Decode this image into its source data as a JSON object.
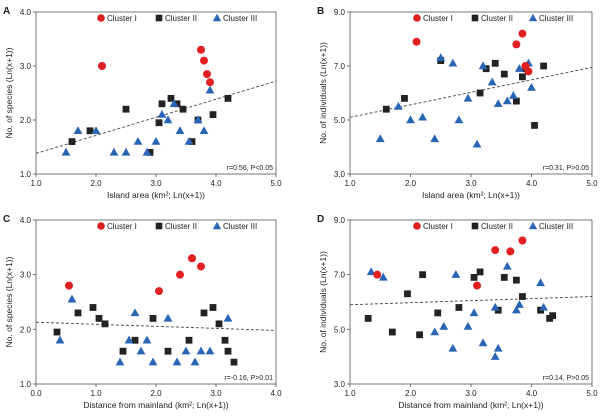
{
  "colors": {
    "cluster1": "#e02020",
    "cluster2": "#222222",
    "cluster3": "#2a64b4",
    "trend": "#444444"
  },
  "legend": [
    "Cluster I",
    "Cluster II",
    "Cluster III"
  ],
  "chart_data": [
    {
      "panel": "A",
      "type": "scatter",
      "xlabel": "Island area (km²; Ln(x+1))",
      "ylabel": "No. of species (Ln(x+1))",
      "xlim": [
        1.0,
        5.0
      ],
      "ylim": [
        1.0,
        4.0
      ],
      "xticks": [
        "1.0",
        "2.0",
        "3.0",
        "4.0",
        "5.0"
      ],
      "yticks": [
        "1.0",
        "2.0",
        "3.0",
        "4.0"
      ],
      "stat": "r=0.56, P<0.05",
      "trend": [
        [
          1.0,
          1.38
        ],
        [
          5.0,
          2.72
        ]
      ],
      "cluster1": [
        [
          2.1,
          3.0
        ],
        [
          3.75,
          3.3
        ],
        [
          3.8,
          3.1
        ],
        [
          3.85,
          2.85
        ],
        [
          3.9,
          2.7
        ]
      ],
      "cluster2": [
        [
          1.6,
          1.6
        ],
        [
          1.9,
          1.8
        ],
        [
          2.5,
          2.2
        ],
        [
          2.9,
          1.4
        ],
        [
          3.05,
          1.95
        ],
        [
          3.1,
          2.3
        ],
        [
          3.25,
          2.4
        ],
        [
          3.35,
          2.3
        ],
        [
          3.45,
          2.2
        ],
        [
          3.6,
          1.6
        ],
        [
          3.7,
          2.0
        ],
        [
          3.95,
          2.1
        ],
        [
          4.2,
          2.4
        ]
      ],
      "cluster3": [
        [
          1.5,
          1.4
        ],
        [
          1.7,
          1.8
        ],
        [
          2.0,
          1.8
        ],
        [
          2.3,
          1.4
        ],
        [
          2.5,
          1.4
        ],
        [
          2.7,
          1.6
        ],
        [
          2.85,
          1.4
        ],
        [
          3.0,
          1.6
        ],
        [
          3.1,
          2.1
        ],
        [
          3.2,
          2.0
        ],
        [
          3.3,
          2.3
        ],
        [
          3.4,
          1.8
        ],
        [
          3.55,
          1.6
        ],
        [
          3.7,
          2.0
        ],
        [
          3.8,
          1.8
        ],
        [
          3.9,
          2.55
        ]
      ]
    },
    {
      "panel": "B",
      "type": "scatter",
      "xlabel": "Island area (km²; Ln(x+1))",
      "ylabel": "No. of individuals (Ln(x+1))",
      "xlim": [
        1.0,
        5.0
      ],
      "ylim": [
        3.0,
        9.0
      ],
      "xticks": [
        "1.0",
        "2.0",
        "3.0",
        "4.0",
        "5.0"
      ],
      "yticks": [
        "3.0",
        "5.0",
        "7.0",
        "9.0"
      ],
      "stat": "r=0.31, P>0.05",
      "trend": [
        [
          1.0,
          5.1
        ],
        [
          5.0,
          6.95
        ]
      ],
      "cluster1": [
        [
          2.1,
          7.9
        ],
        [
          3.75,
          7.8
        ],
        [
          3.85,
          8.2
        ],
        [
          3.9,
          7.0
        ],
        [
          3.95,
          6.8
        ]
      ],
      "cluster2": [
        [
          1.6,
          5.4
        ],
        [
          1.9,
          5.8
        ],
        [
          2.5,
          7.2
        ],
        [
          3.15,
          6.0
        ],
        [
          3.25,
          6.9
        ],
        [
          3.4,
          7.1
        ],
        [
          3.55,
          6.7
        ],
        [
          3.75,
          5.7
        ],
        [
          3.85,
          6.6
        ],
        [
          3.9,
          6.9
        ],
        [
          4.05,
          4.8
        ],
        [
          4.2,
          7.0
        ]
      ],
      "cluster3": [
        [
          1.5,
          4.3
        ],
        [
          1.8,
          5.5
        ],
        [
          2.0,
          5.0
        ],
        [
          2.2,
          5.1
        ],
        [
          2.4,
          4.3
        ],
        [
          2.5,
          7.3
        ],
        [
          2.7,
          7.1
        ],
        [
          2.8,
          5.0
        ],
        [
          2.95,
          5.8
        ],
        [
          3.1,
          4.1
        ],
        [
          3.2,
          7.0
        ],
        [
          3.35,
          6.4
        ],
        [
          3.45,
          5.6
        ],
        [
          3.6,
          5.7
        ],
        [
          3.7,
          5.9
        ],
        [
          3.8,
          6.9
        ],
        [
          3.95,
          7.1
        ],
        [
          4.0,
          6.2
        ]
      ]
    },
    {
      "panel": "C",
      "type": "scatter",
      "xlabel": "Distance from mainland (km²; Ln(x+1))",
      "ylabel": "No. of species (Ln(x+1))",
      "xlim": [
        0.0,
        4.0
      ],
      "ylim": [
        1.0,
        4.0
      ],
      "xticks": [
        "0.0",
        "1.0",
        "2.0",
        "3.0",
        "4.0"
      ],
      "yticks": [
        "1.0",
        "2.0",
        "3.0",
        "4.0"
      ],
      "stat": "r=-0.16, P>0.01",
      "trend": [
        [
          0.0,
          2.13
        ],
        [
          4.0,
          1.98
        ]
      ],
      "cluster1": [
        [
          0.55,
          2.8
        ],
        [
          2.05,
          2.7
        ],
        [
          2.4,
          3.0
        ],
        [
          2.6,
          3.3
        ],
        [
          2.75,
          3.15
        ]
      ],
      "cluster2": [
        [
          0.35,
          1.95
        ],
        [
          0.7,
          2.3
        ],
        [
          0.95,
          2.4
        ],
        [
          1.05,
          2.2
        ],
        [
          1.15,
          2.1
        ],
        [
          1.45,
          1.6
        ],
        [
          1.65,
          1.8
        ],
        [
          1.95,
          2.2
        ],
        [
          2.2,
          1.6
        ],
        [
          2.55,
          1.8
        ],
        [
          2.8,
          2.3
        ],
        [
          2.95,
          2.4
        ],
        [
          3.05,
          2.1
        ],
        [
          3.15,
          1.8
        ],
        [
          3.2,
          1.6
        ],
        [
          3.3,
          1.4
        ]
      ],
      "cluster3": [
        [
          0.4,
          1.8
        ],
        [
          0.6,
          2.55
        ],
        [
          1.4,
          1.4
        ],
        [
          1.55,
          1.8
        ],
        [
          1.65,
          2.3
        ],
        [
          1.75,
          1.6
        ],
        [
          1.85,
          1.8
        ],
        [
          1.95,
          1.4
        ],
        [
          2.2,
          2.2
        ],
        [
          2.35,
          1.4
        ],
        [
          2.5,
          1.6
        ],
        [
          2.65,
          1.4
        ],
        [
          2.75,
          1.6
        ],
        [
          2.9,
          1.6
        ],
        [
          3.2,
          2.2
        ]
      ]
    },
    {
      "panel": "D",
      "type": "scatter",
      "xlabel": "Distance from mainland (km²; Ln(x+1))",
      "ylabel": "No. of individuals (Ln(x+1))",
      "xlim": [
        1.0,
        5.0
      ],
      "ylim": [
        3.0,
        9.0
      ],
      "xticks": [
        "1.0",
        "2.0",
        "3.0",
        "4.0",
        "5.0"
      ],
      "yticks": [
        "3.0",
        "5.0",
        "7.0",
        "9.0"
      ],
      "stat": "r=0.14, P>0.05",
      "trend": [
        [
          1.0,
          5.9
        ],
        [
          5.0,
          6.2
        ]
      ],
      "cluster1": [
        [
          1.45,
          7.0
        ],
        [
          3.1,
          6.6
        ],
        [
          3.4,
          7.9
        ],
        [
          3.65,
          7.85
        ],
        [
          3.85,
          8.25
        ]
      ],
      "cluster2": [
        [
          1.3,
          5.4
        ],
        [
          1.7,
          4.9
        ],
        [
          1.95,
          6.3
        ],
        [
          2.15,
          4.8
        ],
        [
          2.2,
          7.0
        ],
        [
          2.45,
          5.6
        ],
        [
          2.8,
          5.8
        ],
        [
          3.05,
          6.9
        ],
        [
          3.15,
          7.1
        ],
        [
          3.45,
          5.7
        ],
        [
          3.55,
          6.9
        ],
        [
          3.75,
          6.8
        ],
        [
          3.85,
          6.2
        ],
        [
          4.15,
          5.7
        ],
        [
          4.3,
          5.4
        ],
        [
          4.35,
          5.5
        ]
      ],
      "cluster3": [
        [
          1.35,
          7.1
        ],
        [
          1.55,
          6.9
        ],
        [
          2.4,
          4.9
        ],
        [
          2.55,
          5.1
        ],
        [
          2.7,
          4.3
        ],
        [
          2.75,
          7.0
        ],
        [
          2.95,
          5.1
        ],
        [
          3.05,
          5.6
        ],
        [
          3.2,
          4.5
        ],
        [
          3.4,
          4.0
        ],
        [
          3.45,
          4.3
        ],
        [
          3.6,
          7.3
        ],
        [
          3.75,
          5.7
        ],
        [
          3.8,
          5.9
        ],
        [
          4.15,
          6.7
        ],
        [
          4.2,
          5.8
        ],
        [
          3.4,
          5.8
        ]
      ]
    }
  ]
}
